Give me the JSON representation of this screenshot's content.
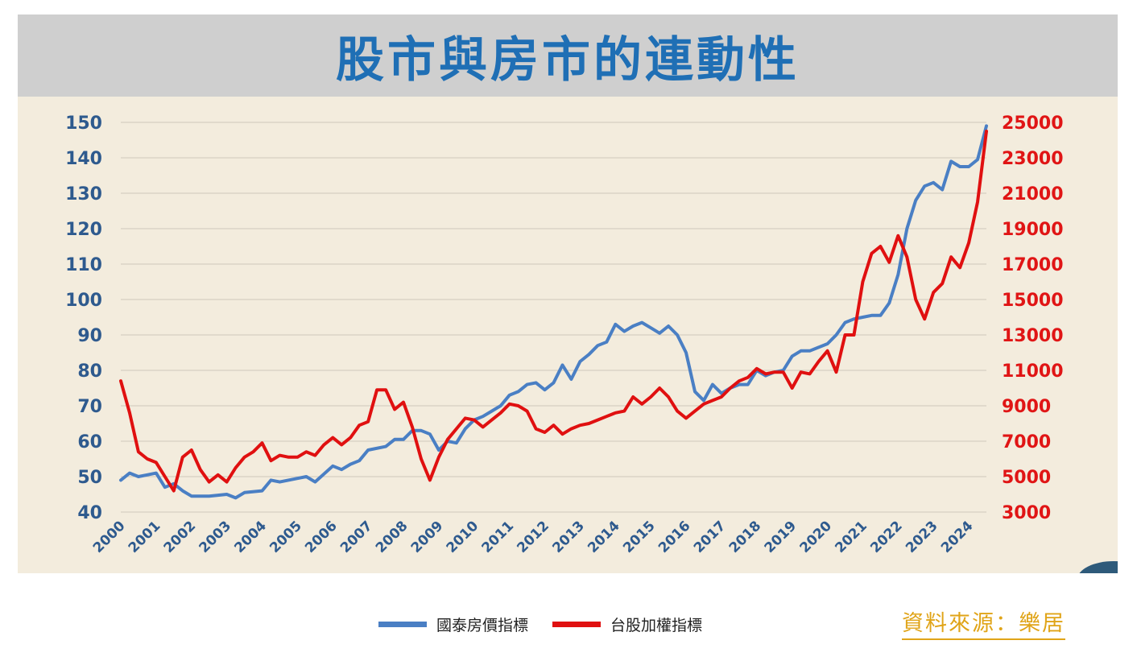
{
  "title": "股市與房市的連動性",
  "source": "資料來源：樂居",
  "legend": {
    "house": "國泰房價指標",
    "stock": "台股加權指標"
  },
  "colors": {
    "house": "#4a7fc4",
    "stock": "#e01010",
    "plot_bg": "#f3ecdd",
    "title": "#1f6fb5",
    "source": "#e0a418"
  },
  "chart_data": {
    "type": "line",
    "x_ticks": [
      "2000",
      "2001",
      "2002",
      "2003",
      "2004",
      "2005",
      "2006",
      "2007",
      "2008",
      "2009",
      "2010",
      "2011",
      "2012",
      "2013",
      "2014",
      "2015",
      "2016",
      "2017",
      "2018",
      "2019",
      "2020",
      "2021",
      "2022",
      "2023",
      "2024"
    ],
    "y_left": {
      "min": 40,
      "max": 150,
      "ticks": [
        "150",
        "140",
        "130",
        "120",
        "110",
        "100",
        "90",
        "80",
        "70",
        "60",
        "50",
        "40"
      ]
    },
    "y_right": {
      "min": 3000,
      "max": 25000,
      "ticks": [
        "25000",
        "23000",
        "21000",
        "19000",
        "17000",
        "15000",
        "13000",
        "11000",
        "9000",
        "7000",
        "5000",
        "3000"
      ]
    },
    "grid": "horizontal",
    "series": [
      {
        "name": "國泰房價指標",
        "axis": "left",
        "points": [
          [
            2000.0,
            49
          ],
          [
            2000.25,
            51
          ],
          [
            2000.5,
            50
          ],
          [
            2000.75,
            50.5
          ],
          [
            2001.0,
            51
          ],
          [
            2001.25,
            47
          ],
          [
            2001.5,
            48
          ],
          [
            2001.75,
            46
          ],
          [
            2002.0,
            44.5
          ],
          [
            2002.5,
            44.5
          ],
          [
            2003.0,
            45
          ],
          [
            2003.25,
            44
          ],
          [
            2003.5,
            45.5
          ],
          [
            2004.0,
            46
          ],
          [
            2004.25,
            49
          ],
          [
            2004.5,
            48.5
          ],
          [
            2005.0,
            49.5
          ],
          [
            2005.25,
            50
          ],
          [
            2005.5,
            48.5
          ],
          [
            2006.0,
            53
          ],
          [
            2006.25,
            52
          ],
          [
            2006.5,
            53.5
          ],
          [
            2006.75,
            54.5
          ],
          [
            2007.0,
            57.5
          ],
          [
            2007.5,
            58.5
          ],
          [
            2007.75,
            60.5
          ],
          [
            2008.0,
            60.5
          ],
          [
            2008.25,
            63
          ],
          [
            2008.5,
            63
          ],
          [
            2008.75,
            62
          ],
          [
            2009.0,
            57.5
          ],
          [
            2009.25,
            60
          ],
          [
            2009.5,
            59.5
          ],
          [
            2009.75,
            63.5
          ],
          [
            2010.0,
            66
          ],
          [
            2010.25,
            67
          ],
          [
            2010.5,
            68.5
          ],
          [
            2010.75,
            70
          ],
          [
            2011.0,
            73
          ],
          [
            2011.25,
            74
          ],
          [
            2011.5,
            76
          ],
          [
            2011.75,
            76.5
          ],
          [
            2012.0,
            74.5
          ],
          [
            2012.25,
            76.5
          ],
          [
            2012.5,
            81.5
          ],
          [
            2012.75,
            77.5
          ],
          [
            2013.0,
            82.5
          ],
          [
            2013.25,
            84.5
          ],
          [
            2013.5,
            87
          ],
          [
            2013.75,
            88
          ],
          [
            2014.0,
            93
          ],
          [
            2014.25,
            91
          ],
          [
            2014.5,
            92.5
          ],
          [
            2014.75,
            93.5
          ],
          [
            2015.0,
            92
          ],
          [
            2015.25,
            90.5
          ],
          [
            2015.5,
            92.5
          ],
          [
            2015.75,
            90
          ],
          [
            2016.0,
            85
          ],
          [
            2016.25,
            74
          ],
          [
            2016.5,
            71.5
          ],
          [
            2016.75,
            76
          ],
          [
            2017.0,
            73.5
          ],
          [
            2017.25,
            75
          ],
          [
            2017.5,
            76
          ],
          [
            2017.75,
            76
          ],
          [
            2018.0,
            80
          ],
          [
            2018.25,
            78.5
          ],
          [
            2018.5,
            79.5
          ],
          [
            2018.75,
            80
          ],
          [
            2019.0,
            84
          ],
          [
            2019.25,
            85.5
          ],
          [
            2019.5,
            85.5
          ],
          [
            2019.75,
            86.5
          ],
          [
            2020.0,
            87.5
          ],
          [
            2020.25,
            90
          ],
          [
            2020.5,
            93.5
          ],
          [
            2020.75,
            94.5
          ],
          [
            2021.0,
            95
          ],
          [
            2021.25,
            95.5
          ],
          [
            2021.5,
            95.5
          ],
          [
            2021.75,
            99
          ],
          [
            2022.0,
            107
          ],
          [
            2022.25,
            120
          ],
          [
            2022.5,
            128
          ],
          [
            2022.75,
            132
          ],
          [
            2023.0,
            133
          ],
          [
            2023.25,
            131
          ],
          [
            2023.5,
            139
          ],
          [
            2023.75,
            137.5
          ],
          [
            2024.0,
            137.5
          ],
          [
            2024.25,
            139.5
          ],
          [
            2024.5,
            149
          ]
        ]
      },
      {
        "name": "台股加權指標",
        "axis": "right",
        "points": [
          [
            2000.0,
            10400
          ],
          [
            2000.25,
            8600
          ],
          [
            2000.5,
            6400
          ],
          [
            2000.75,
            6000
          ],
          [
            2001.0,
            5800
          ],
          [
            2001.25,
            5000
          ],
          [
            2001.5,
            4200
          ],
          [
            2001.75,
            6100
          ],
          [
            2002.0,
            6500
          ],
          [
            2002.25,
            5400
          ],
          [
            2002.5,
            4700
          ],
          [
            2002.75,
            5100
          ],
          [
            2003.0,
            4700
          ],
          [
            2003.25,
            5500
          ],
          [
            2003.5,
            6100
          ],
          [
            2003.75,
            6400
          ],
          [
            2004.0,
            6900
          ],
          [
            2004.25,
            5900
          ],
          [
            2004.5,
            6200
          ],
          [
            2004.75,
            6100
          ],
          [
            2005.0,
            6100
          ],
          [
            2005.25,
            6400
          ],
          [
            2005.5,
            6200
          ],
          [
            2005.75,
            6800
          ],
          [
            2006.0,
            7200
          ],
          [
            2006.25,
            6800
          ],
          [
            2006.5,
            7200
          ],
          [
            2006.75,
            7900
          ],
          [
            2007.0,
            8100
          ],
          [
            2007.25,
            9900
          ],
          [
            2007.5,
            9900
          ],
          [
            2007.75,
            8800
          ],
          [
            2008.0,
            9200
          ],
          [
            2008.25,
            7800
          ],
          [
            2008.5,
            6000
          ],
          [
            2008.75,
            4800
          ],
          [
            2009.0,
            6100
          ],
          [
            2009.25,
            7100
          ],
          [
            2009.5,
            7700
          ],
          [
            2009.75,
            8300
          ],
          [
            2010.0,
            8200
          ],
          [
            2010.25,
            7800
          ],
          [
            2010.5,
            8200
          ],
          [
            2010.75,
            8600
          ],
          [
            2011.0,
            9100
          ],
          [
            2011.25,
            9000
          ],
          [
            2011.5,
            8700
          ],
          [
            2011.75,
            7700
          ],
          [
            2012.0,
            7500
          ],
          [
            2012.25,
            7900
          ],
          [
            2012.5,
            7400
          ],
          [
            2012.75,
            7700
          ],
          [
            2013.0,
            7900
          ],
          [
            2013.25,
            8000
          ],
          [
            2013.5,
            8200
          ],
          [
            2013.75,
            8400
          ],
          [
            2014.0,
            8600
          ],
          [
            2014.25,
            8700
          ],
          [
            2014.5,
            9500
          ],
          [
            2014.75,
            9100
          ],
          [
            2015.0,
            9500
          ],
          [
            2015.25,
            10000
          ],
          [
            2015.5,
            9500
          ],
          [
            2015.75,
            8700
          ],
          [
            2016.0,
            8300
          ],
          [
            2016.25,
            8700
          ],
          [
            2016.5,
            9100
          ],
          [
            2016.75,
            9300
          ],
          [
            2017.0,
            9500
          ],
          [
            2017.25,
            10000
          ],
          [
            2017.5,
            10400
          ],
          [
            2017.75,
            10600
          ],
          [
            2018.0,
            11100
          ],
          [
            2018.25,
            10800
          ],
          [
            2018.5,
            10900
          ],
          [
            2018.75,
            10900
          ],
          [
            2019.0,
            10000
          ],
          [
            2019.25,
            10900
          ],
          [
            2019.5,
            10800
          ],
          [
            2019.75,
            11500
          ],
          [
            2020.0,
            12100
          ],
          [
            2020.25,
            10900
          ],
          [
            2020.5,
            13000
          ],
          [
            2020.75,
            13000
          ],
          [
            2021.0,
            16000
          ],
          [
            2021.25,
            17600
          ],
          [
            2021.5,
            18000
          ],
          [
            2021.75,
            17100
          ],
          [
            2022.0,
            18600
          ],
          [
            2022.25,
            17400
          ],
          [
            2022.5,
            15000
          ],
          [
            2022.75,
            13900
          ],
          [
            2023.0,
            15400
          ],
          [
            2023.25,
            15900
          ],
          [
            2023.5,
            17400
          ],
          [
            2023.75,
            16800
          ],
          [
            2024.0,
            18200
          ],
          [
            2024.25,
            20500
          ],
          [
            2024.5,
            24500
          ]
        ]
      }
    ]
  }
}
